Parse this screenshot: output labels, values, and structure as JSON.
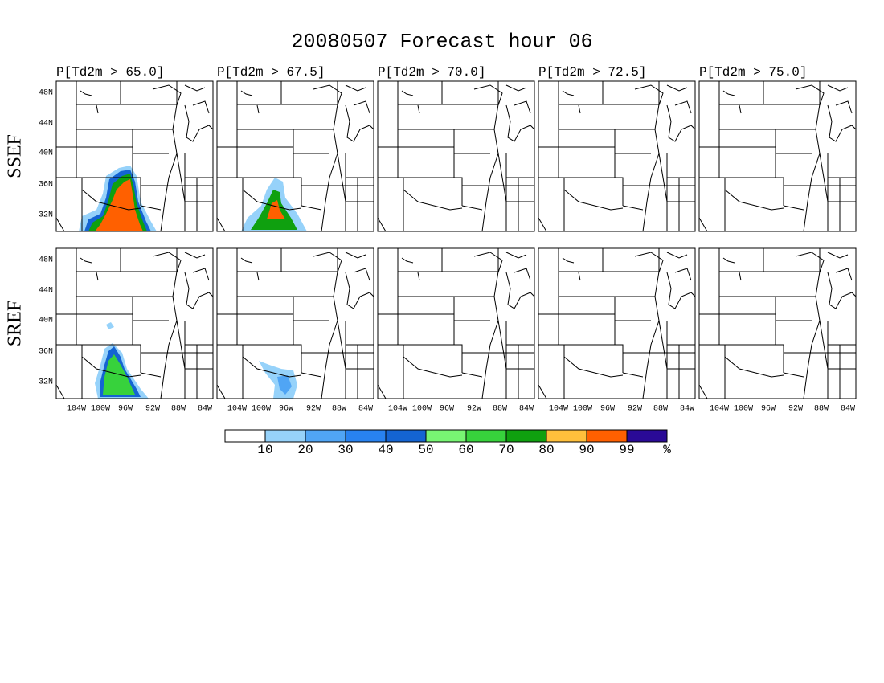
{
  "title": "20080507 Forecast hour 06",
  "columns": [
    "P[Td2m > 65.0]",
    "P[Td2m > 67.5]",
    "P[Td2m > 70.0]",
    "P[Td2m > 72.5]",
    "P[Td2m > 75.0]"
  ],
  "rows": [
    "SSEF",
    "SREF"
  ],
  "lat_labels": [
    "48N",
    "44N",
    "40N",
    "36N",
    "32N"
  ],
  "lon_labels": [
    "104W",
    "100W",
    "96W",
    "92W",
    "88W",
    "84W"
  ],
  "colorbar": {
    "colors": [
      "#ffffff",
      "#96d2fa",
      "#50a5f5",
      "#2882f0",
      "#1464d2",
      "#78f573",
      "#37d23c",
      "#0fa00f",
      "#ffc03c",
      "#ff6000",
      "#2a0a96"
    ],
    "labels": [
      "10",
      "20",
      "30",
      "40",
      "50",
      "60",
      "70",
      "80",
      "90",
      "99"
    ],
    "unit": "%"
  }
}
